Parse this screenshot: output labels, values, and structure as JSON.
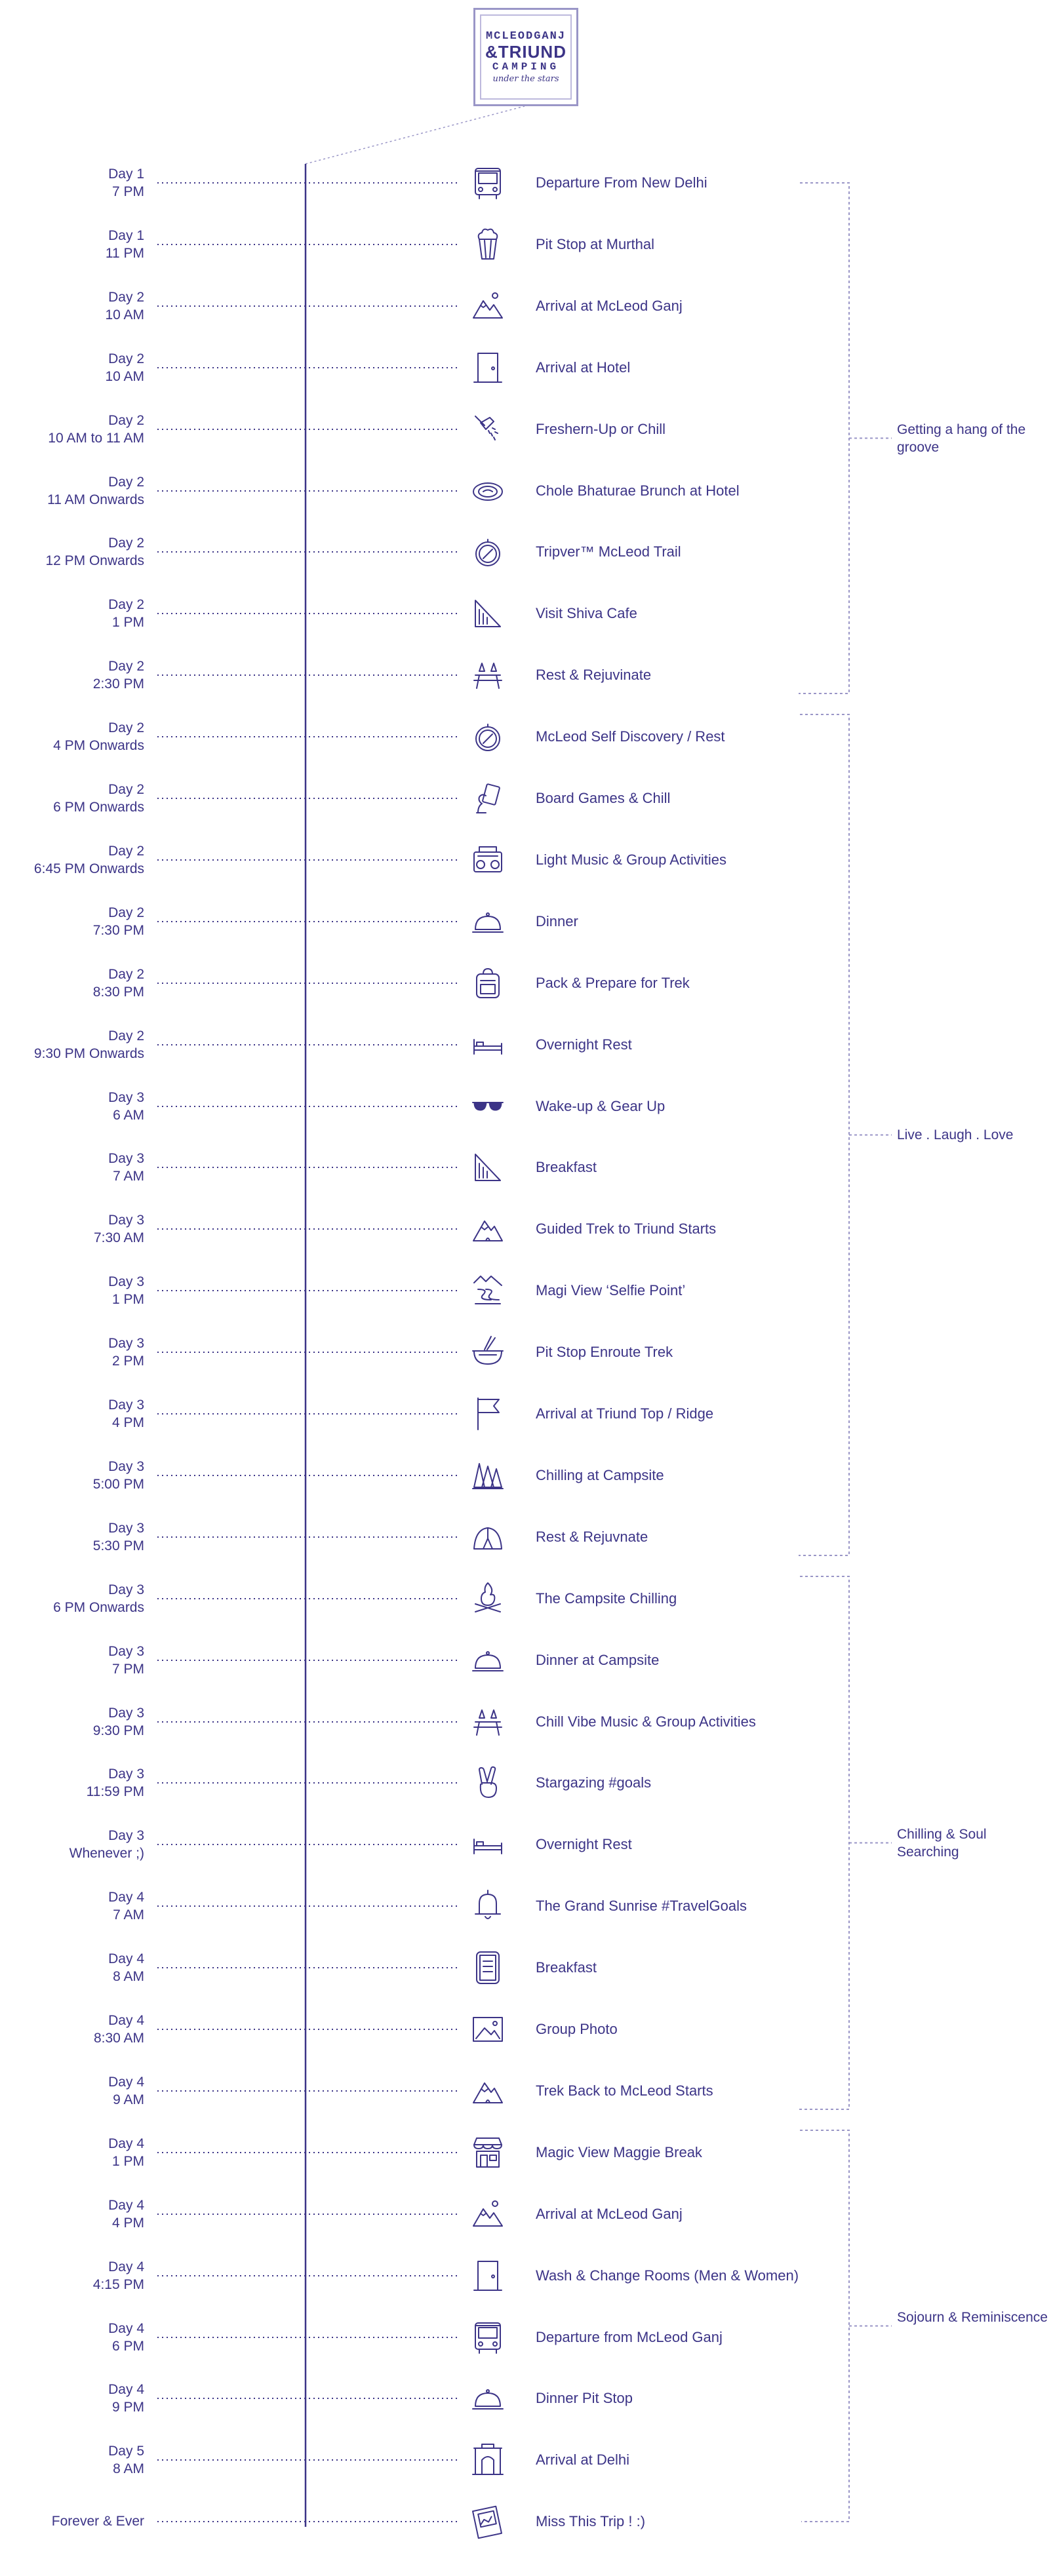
{
  "logo": {
    "line1": "MCLEODGANJ",
    "line2a": "&TRIUND",
    "line3": "CAMPING",
    "line4": "under the stars"
  },
  "colors": {
    "ink": "#3c3487",
    "rule": "#9a96c7"
  },
  "events": [
    {
      "day": "Day 1",
      "time": "7 PM",
      "label": "Departure From New Delhi",
      "icon": "bus-icon"
    },
    {
      "day": "Day 1",
      "time": "11 PM",
      "label": "Pit Stop at Murthal",
      "icon": "popcorn-icon"
    },
    {
      "day": "Day 2",
      "time": "10 AM",
      "label": "Arrival at McLeod Ganj",
      "icon": "mountains-icon"
    },
    {
      "day": "Day 2",
      "time": "10 AM",
      "label": "Arrival at Hotel",
      "icon": "door-icon"
    },
    {
      "day": "Day 2",
      "time": "10 AM to 11 AM",
      "label": "Freshern-Up or Chill",
      "icon": "shower-icon"
    },
    {
      "day": "Day 2",
      "time": "11 AM Onwards",
      "label": "Chole Bhaturae Brunch at Hotel",
      "icon": "plate-icon"
    },
    {
      "day": "Day 2",
      "time": "12 PM Onwards",
      "label": "Tripver™ McLeod Trail",
      "icon": "compass-icon"
    },
    {
      "day": "Day 2",
      "time": "1 PM",
      "label": "Visit Shiva Cafe",
      "icon": "sandwich-icon"
    },
    {
      "day": "Day 2",
      "time": "2:30 PM",
      "label": "Rest & Rejuvinate",
      "icon": "picnic-icon"
    },
    {
      "day": "Day 2",
      "time": "4 PM Onwards",
      "label": "McLeod Self Discovery / Rest",
      "icon": "compass-icon"
    },
    {
      "day": "Day 2",
      "time": "6 PM Onwards",
      "label": "Board Games & Chill",
      "icon": "cards-icon"
    },
    {
      "day": "Day 2",
      "time": "6:45 PM Onwards",
      "label": "Light Music & Group Activities",
      "icon": "boombox-icon"
    },
    {
      "day": "Day 2",
      "time": "7:30 PM",
      "label": "Dinner",
      "icon": "cloche-icon"
    },
    {
      "day": "Day 2",
      "time": "8:30 PM",
      "label": "Pack & Prepare for Trek",
      "icon": "backpack-icon"
    },
    {
      "day": "Day 2",
      "time": "9:30 PM Onwards",
      "label": "Overnight Rest",
      "icon": "bed-icon"
    },
    {
      "day": "Day 3",
      "time": "6 AM",
      "label": "Wake-up & Gear Up",
      "icon": "sunglasses-icon"
    },
    {
      "day": "Day 3",
      "time": "7 AM",
      "label": "Breakfast",
      "icon": "sandwich-icon"
    },
    {
      "day": "Day 3",
      "time": "7:30 AM",
      "label": "Guided Trek to Triund Starts",
      "icon": "mountain-icon"
    },
    {
      "day": "Day 3",
      "time": "1 PM",
      "label": "Magi View ‘Selfie Point’",
      "icon": "river-icon"
    },
    {
      "day": "Day 3",
      "time": "2 PM",
      "label": "Pit Stop Enroute Trek",
      "icon": "bowl-icon"
    },
    {
      "day": "Day 3",
      "time": "4 PM",
      "label": "Arrival at Triund Top / Ridge",
      "icon": "flag-icon"
    },
    {
      "day": "Day 3",
      "time": "5:00 PM",
      "label": "Chilling at Campsite",
      "icon": "trees-icon"
    },
    {
      "day": "Day 3",
      "time": "5:30 PM",
      "label": "Rest & Rejuvnate",
      "icon": "tent-icon"
    },
    {
      "day": "Day 3",
      "time": "6 PM Onwards",
      "label": "The Campsite Chilling",
      "icon": "campfire-icon"
    },
    {
      "day": "Day 3",
      "time": "7 PM",
      "label": "Dinner at Campsite",
      "icon": "cloche-icon"
    },
    {
      "day": "Day 3",
      "time": "9:30 PM",
      "label": "Chill Vibe Music & Group Activities",
      "icon": "picnic-icon"
    },
    {
      "day": "Day 3",
      "time": "11:59 PM",
      "label": "Stargazing #goals",
      "icon": "peace-hand-icon"
    },
    {
      "day": "Day 3",
      "time": "Whenever ;)",
      "label": "Overnight Rest",
      "icon": "bed-icon"
    },
    {
      "day": "Day 4",
      "time": "7 AM",
      "label": "The Grand Sunrise #TravelGoals",
      "icon": "bell-icon"
    },
    {
      "day": "Day 4",
      "time": "8 AM",
      "label": "Breakfast",
      "icon": "menu-icon"
    },
    {
      "day": "Day 4",
      "time": "8:30 AM",
      "label": "Group Photo",
      "icon": "photo-icon"
    },
    {
      "day": "Day 4",
      "time": "9 AM",
      "label": "Trek Back to McLeod Starts",
      "icon": "mountain-icon"
    },
    {
      "day": "Day 4",
      "time": "1 PM",
      "label": "Magic View Maggie Break",
      "icon": "shop-icon"
    },
    {
      "day": "Day 4",
      "time": "4 PM",
      "label": "Arrival at McLeod Ganj",
      "icon": "mountains-icon"
    },
    {
      "day": "Day 4",
      "time": "4:15 PM",
      "label": "Wash & Change Rooms (Men & Women)",
      "icon": "door-icon"
    },
    {
      "day": "Day 4",
      "time": "6 PM",
      "label": "Departure from McLeod Ganj",
      "icon": "bus-icon"
    },
    {
      "day": "Day 4",
      "time": "9 PM",
      "label": "Dinner Pit Stop",
      "icon": "cloche-icon"
    },
    {
      "day": "Day 5",
      "time": "8 AM",
      "label": "Arrival at Delhi",
      "icon": "india-gate-icon"
    },
    {
      "day": "Forever & Ever",
      "time": "",
      "label": "Miss This Trip ! :)",
      "icon": "postcard-icon"
    }
  ],
  "phases": [
    {
      "label": "Getting a hang of the groove",
      "from": 0,
      "to": 8
    },
    {
      "label": "Live . Laugh . Love",
      "from": 9,
      "to": 22
    },
    {
      "label": "Chilling & Soul Searching",
      "from": 23,
      "to": 31
    },
    {
      "label": "Sojourn & Reminiscence",
      "from": 32,
      "to": 38
    }
  ]
}
